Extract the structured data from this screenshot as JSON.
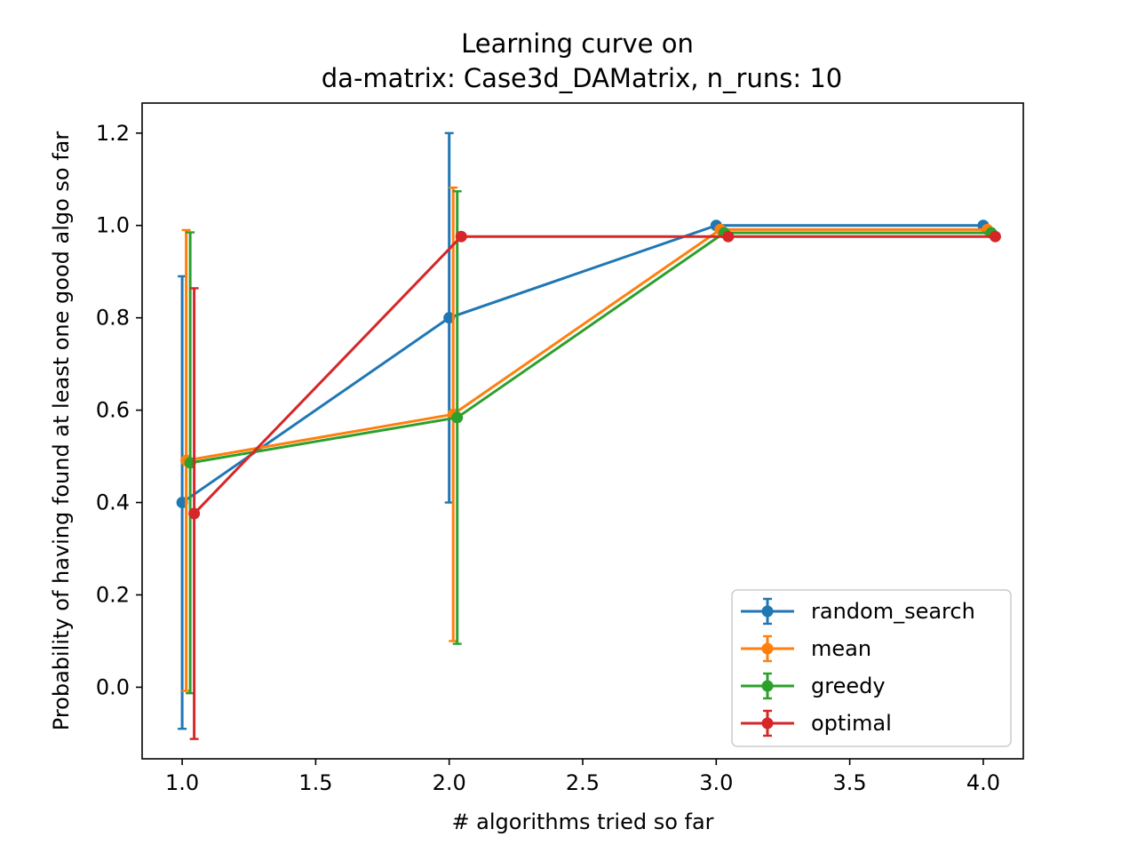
{
  "chart_data": {
    "type": "line",
    "title_line1": "Learning curve on",
    "title_line2": "da-matrix: Case3d_DAMatrix, n_runs: 10",
    "xlabel": "# algorithms tried so far",
    "ylabel": "Probability of having found at least one good algo so far",
    "xlim": [
      0.85,
      4.15
    ],
    "ylim": [
      -0.155,
      1.265
    ],
    "xticks": [
      1.0,
      1.5,
      2.0,
      2.5,
      3.0,
      3.5,
      4.0
    ],
    "xtick_labels": [
      "1.0",
      "1.5",
      "2.0",
      "2.5",
      "3.0",
      "3.5",
      "4.0"
    ],
    "yticks": [
      0.0,
      0.2,
      0.4,
      0.6,
      0.8,
      1.0,
      1.2
    ],
    "ytick_labels": [
      "0.0",
      "0.2",
      "0.4",
      "0.6",
      "0.8",
      "1.0",
      "1.2"
    ],
    "grid": false,
    "legend_position": "lower-right",
    "series": [
      {
        "name": "random_search",
        "color": "#1f77b4",
        "x": [
          1.0,
          2.0,
          3.0,
          4.0
        ],
        "y": [
          0.4,
          0.8,
          1.0,
          1.0
        ],
        "yerr_low": [
          -0.09,
          0.4,
          1.0,
          1.0
        ],
        "yerr_high": [
          0.89,
          1.2,
          1.0,
          1.0
        ]
      },
      {
        "name": "mean",
        "color": "#ff7f0e",
        "x": [
          1.015,
          2.015,
          3.015,
          4.015
        ],
        "y": [
          0.491,
          0.591,
          0.991,
          0.991
        ],
        "yerr_low": [
          -0.008,
          0.1,
          0.991,
          0.991
        ],
        "yerr_high": [
          0.99,
          1.082,
          0.991,
          0.991
        ]
      },
      {
        "name": "greedy",
        "color": "#2ca02c",
        "x": [
          1.03,
          2.03,
          3.03,
          4.03
        ],
        "y": [
          0.486,
          0.584,
          0.984,
          0.984
        ],
        "yerr_low": [
          -0.013,
          0.094,
          0.984,
          0.984
        ],
        "yerr_high": [
          0.985,
          1.074,
          0.984,
          0.984
        ]
      },
      {
        "name": "optimal",
        "color": "#d62728",
        "x": [
          1.045,
          2.045,
          3.045,
          4.045
        ],
        "y": [
          0.376,
          0.976,
          0.976,
          0.976
        ],
        "yerr_low": [
          -0.112,
          0.976,
          0.976,
          0.976
        ],
        "yerr_high": [
          0.864,
          0.976,
          0.976,
          0.976
        ]
      }
    ]
  }
}
